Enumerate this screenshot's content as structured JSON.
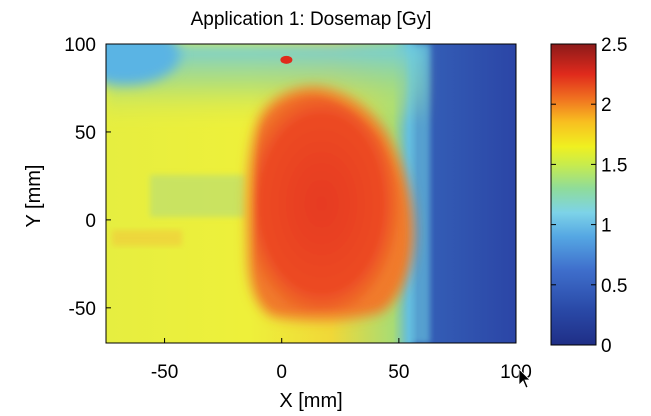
{
  "chart_data": {
    "type": "heatmap",
    "title": "Application 1: Dosemap [Gy]",
    "xlabel": "X [mm]",
    "ylabel": "Y [mm]",
    "xlim": [
      -75,
      100
    ],
    "ylim": [
      -70,
      100
    ],
    "x_ticks": [
      -50,
      0,
      50,
      100
    ],
    "y_ticks": [
      -50,
      0,
      50,
      100
    ],
    "colorbar": {
      "min": 0,
      "max": 2.5,
      "ticks": [
        0,
        0.5,
        1,
        1.5,
        2,
        2.5
      ],
      "colormap": "jet"
    },
    "grid": false,
    "regions": [
      {
        "region": "high-dose core",
        "x_range": [
          -5,
          58
        ],
        "y_range": [
          -62,
          83
        ],
        "dose": 2.2
      },
      {
        "region": "hot spot",
        "x": 2,
        "y": 91,
        "dose": 2.4
      },
      {
        "region": "left plateau",
        "x_range": [
          -75,
          -5
        ],
        "y_range": [
          -70,
          70
        ],
        "dose": 1.65
      },
      {
        "region": "upper band",
        "x_range": [
          -45,
          45
        ],
        "y_range": [
          70,
          100
        ],
        "dose": 1.2
      },
      {
        "region": "upper-left corner",
        "x": -70,
        "y": 95,
        "dose": 0.75
      },
      {
        "region": "falloff band",
        "x_range": [
          58,
          66
        ],
        "y_range": [
          -70,
          100
        ],
        "dose": 0.9
      },
      {
        "region": "right low-dose region",
        "x_range": [
          66,
          100
        ],
        "y_range": [
          -70,
          100
        ],
        "dose": 0.22
      }
    ]
  },
  "cursor_icon": "mouse-pointer-icon"
}
